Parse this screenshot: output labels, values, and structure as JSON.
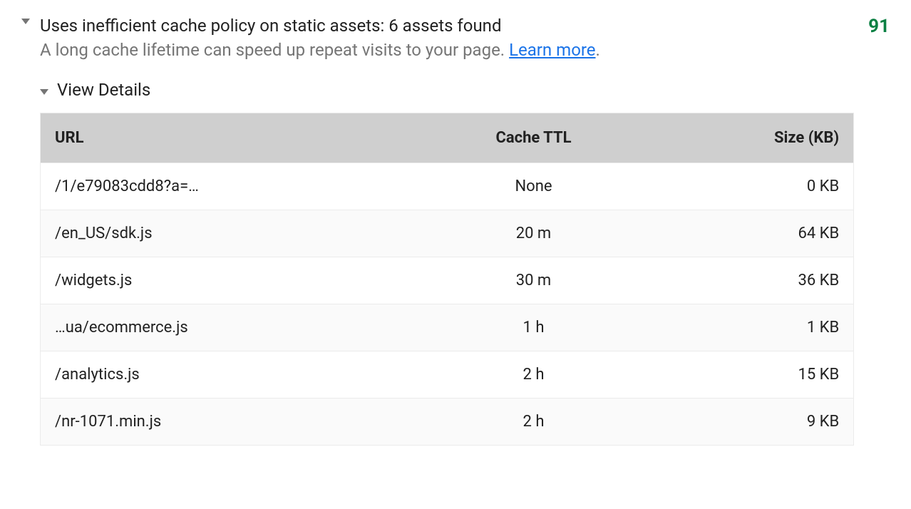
{
  "audit": {
    "title": "Uses inefficient cache policy on static assets: 6 assets found",
    "description": "A long cache lifetime can speed up repeat visits to your page. ",
    "learn_more_label": "Learn more",
    "desc_suffix": ".",
    "score": "91",
    "score_color": "#0b8043",
    "details_label": "View Details",
    "table": {
      "header_bg": "#cfcfcf",
      "row_alt_bg": "#fafafa",
      "border_color": "#ebebeb",
      "columns": [
        {
          "key": "url",
          "label": "URL",
          "align": "left"
        },
        {
          "key": "ttl",
          "label": "Cache TTL",
          "align": "center"
        },
        {
          "key": "size",
          "label": "Size (KB)",
          "align": "right"
        }
      ],
      "rows": [
        {
          "url": "/1/e79083cdd8?a=…",
          "ttl": "None",
          "size": "0 KB"
        },
        {
          "url": "/en_US/sdk.js",
          "ttl": "20 m",
          "size": "64 KB"
        },
        {
          "url": "/widgets.js",
          "ttl": "30 m",
          "size": "36 KB"
        },
        {
          "url": "…ua/ecommerce.js",
          "ttl": "1 h",
          "size": "1 KB"
        },
        {
          "url": "/analytics.js",
          "ttl": "2 h",
          "size": "15 KB"
        },
        {
          "url": "/nr-1071.min.js",
          "ttl": "2 h",
          "size": "9 KB"
        }
      ]
    }
  },
  "colors": {
    "text_primary": "#212121",
    "text_secondary": "#757575",
    "link": "#1a73e8",
    "background": "#ffffff"
  }
}
